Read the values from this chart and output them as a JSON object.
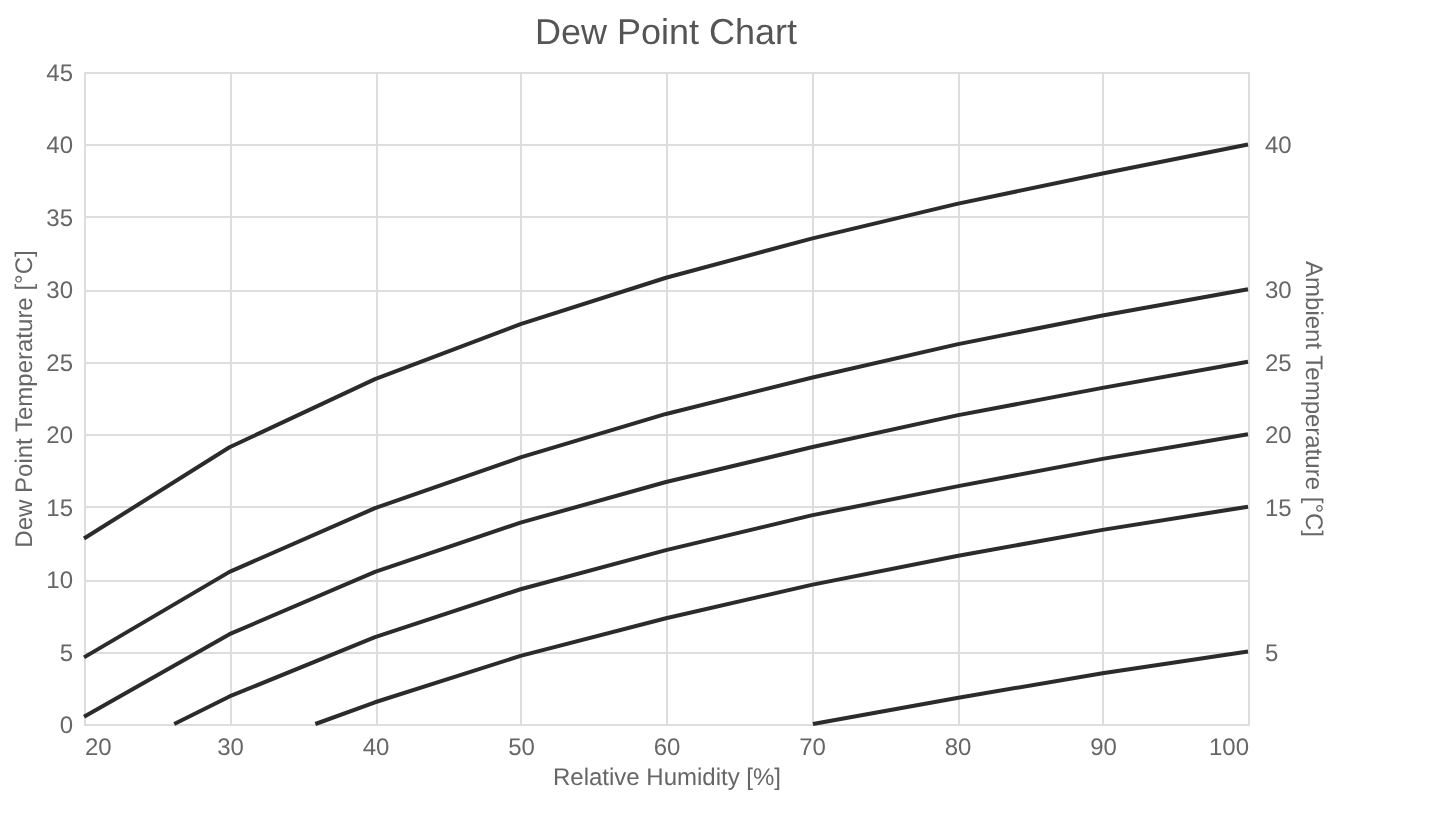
{
  "chart_data": {
    "type": "line",
    "title": "Dew Point Chart",
    "xlabel": "Relative Humidity [%]",
    "ylabel": "Dew Point Temperature [°C]",
    "y2label": "Ambient Temperature [°C]",
    "xlim": [
      20,
      100
    ],
    "xticks": [
      20,
      30,
      40,
      50,
      60,
      70,
      80,
      90,
      100
    ],
    "ylim": [
      0,
      45
    ],
    "yticks": [
      0,
      5,
      10,
      15,
      20,
      25,
      30,
      35,
      40,
      45
    ],
    "y2lim": [
      0,
      45
    ],
    "y2ticks": [
      5,
      15,
      20,
      25,
      30,
      40
    ],
    "grid": true,
    "legend": false,
    "marker": "none",
    "line_style": "solid",
    "series": [
      {
        "color": "#2b2b2b",
        "x": [
          20,
          30,
          40,
          50,
          60,
          70,
          80,
          90,
          100
        ],
        "values": [
          12.8,
          19.1,
          23.8,
          27.6,
          30.8,
          33.5,
          35.9,
          38.0,
          40.0
        ]
      },
      {
        "color": "#2b2b2b",
        "x": [
          20,
          30,
          40,
          50,
          60,
          70,
          80,
          90,
          100
        ],
        "values": [
          4.6,
          10.5,
          14.9,
          18.4,
          21.4,
          23.9,
          26.2,
          28.2,
          30.0
        ]
      },
      {
        "color": "#2b2b2b",
        "x": [
          20,
          30,
          40,
          50,
          60,
          70,
          80,
          90,
          100
        ],
        "values": [
          0.5,
          6.2,
          10.5,
          13.9,
          16.7,
          19.1,
          21.3,
          23.2,
          25.0
        ]
      },
      {
        "color": "#2b2b2b",
        "x": [
          26.2,
          30,
          40,
          50,
          60,
          70,
          80,
          90,
          100
        ],
        "values": [
          0.0,
          1.9,
          6.0,
          9.3,
          12.0,
          14.4,
          16.4,
          18.3,
          20.0
        ]
      },
      {
        "color": "#2b2b2b",
        "x": [
          35.9,
          40,
          50,
          60,
          70,
          80,
          90,
          100
        ],
        "values": [
          0.0,
          1.5,
          4.7,
          7.3,
          9.6,
          11.6,
          13.4,
          15.0
        ]
      },
      {
        "color": "#2b2b2b",
        "x": [
          70.1,
          80,
          90,
          100
        ],
        "values": [
          0.0,
          1.8,
          3.5,
          5.0
        ]
      }
    ]
  }
}
